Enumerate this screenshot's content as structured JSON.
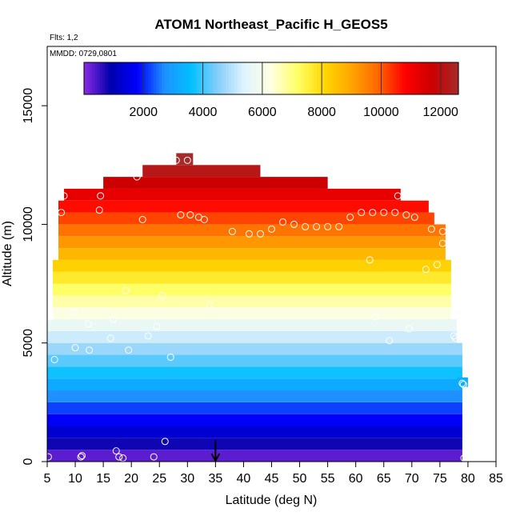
{
  "chart_data": {
    "type": "heatmap",
    "title": "ATOM1 Northeast_Pacific H_GEOS5",
    "subtitle_flights": "Flts: 1,2",
    "subtitle_dates": "MMDD: 0729,0801",
    "xlabel": "Latitude (deg N)",
    "ylabel": "Altitude (m)",
    "xlim": [
      5,
      85
    ],
    "ylim": [
      0,
      17500
    ],
    "x_ticks": [
      5,
      10,
      15,
      20,
      25,
      30,
      35,
      40,
      45,
      50,
      55,
      60,
      65,
      70,
      75,
      80,
      85
    ],
    "y_ticks": [
      0,
      5000,
      10000,
      15000
    ],
    "colorbar": {
      "min": 0,
      "max": 12600,
      "ticks": [
        2000,
        4000,
        6000,
        8000,
        10000,
        12000
      ],
      "colors": [
        "#8a2be2",
        "#0000ad",
        "#0000ff",
        "#1e90ff",
        "#00bfff",
        "#87cefa",
        "#e0f4ff",
        "#ffffe0",
        "#ffff66",
        "#ffd700",
        "#ffa500",
        "#ff6600",
        "#ff0000",
        "#cc0000",
        "#a52a2a"
      ]
    },
    "layer_thickness": 500,
    "layers": [
      {
        "alt": 0,
        "x0": 5,
        "x1": 79,
        "value": 300
      },
      {
        "alt": 500,
        "x0": 5,
        "x1": 79,
        "value": 800
      },
      {
        "alt": 1000,
        "x0": 5,
        "x1": 79,
        "value": 1300
      },
      {
        "alt": 1500,
        "x0": 5,
        "x1": 79,
        "value": 1700
      },
      {
        "alt": 2000,
        "x0": 5,
        "x1": 79,
        "value": 2200
      },
      {
        "alt": 2500,
        "x0": 5,
        "x1": 79,
        "value": 2700
      },
      {
        "alt": 3000,
        "x0": 5,
        "x1": 79,
        "value": 3200
      },
      {
        "alt": 3500,
        "x0": 5,
        "x1": 79,
        "value": 3700
      },
      {
        "alt": 4000,
        "x0": 5,
        "x1": 79,
        "value": 4200
      },
      {
        "alt": 4500,
        "x0": 5,
        "x1": 79,
        "value": 4700
      },
      {
        "alt": 5000,
        "x0": 5,
        "x1": 78,
        "value": 5200
      },
      {
        "alt": 5500,
        "x0": 5,
        "x1": 78,
        "value": 5700
      },
      {
        "alt": 6000,
        "x0": 6,
        "x1": 77,
        "value": 6200
      },
      {
        "alt": 6500,
        "x0": 6,
        "x1": 77,
        "value": 6700
      },
      {
        "alt": 7000,
        "x0": 6,
        "x1": 77,
        "value": 7200
      },
      {
        "alt": 7500,
        "x0": 6,
        "x1": 77,
        "value": 7700
      },
      {
        "alt": 8000,
        "x0": 6,
        "x1": 77,
        "value": 8200
      },
      {
        "alt": 8500,
        "x0": 7,
        "x1": 76,
        "value": 8700
      },
      {
        "alt": 9000,
        "x0": 7,
        "x1": 76,
        "value": 9200
      },
      {
        "alt": 9500,
        "x0": 7,
        "x1": 76,
        "value": 9700
      },
      {
        "alt": 10000,
        "x0": 7,
        "x1": 74,
        "value": 10200
      },
      {
        "alt": 10500,
        "x0": 7,
        "x1": 73,
        "value": 10700
      },
      {
        "alt": 11000,
        "x0": 8,
        "x1": 68,
        "value": 11200
      },
      {
        "alt": 11500,
        "x0": 15,
        "x1": 55,
        "value": 11700
      },
      {
        "alt": 12000,
        "x0": 22,
        "x1": 43,
        "value": 12200
      },
      {
        "alt": 12500,
        "x0": 28,
        "x1": 31,
        "value": 12600
      }
    ],
    "isolated_cells": [
      {
        "x0": 78,
        "x1": 80,
        "alt": 3150,
        "h": 400,
        "value": 3300
      }
    ],
    "observations": [
      [
        5.2,
        200
      ],
      [
        11,
        200
      ],
      [
        11.2,
        250
      ],
      [
        17.3,
        450
      ],
      [
        17.8,
        200
      ],
      [
        18.5,
        150
      ],
      [
        24,
        200
      ],
      [
        26,
        850
      ],
      [
        6.3,
        4300
      ],
      [
        10,
        4800
      ],
      [
        12.5,
        4700
      ],
      [
        19.5,
        4700
      ],
      [
        23,
        5300
      ],
      [
        24.5,
        5700
      ],
      [
        27,
        4400
      ],
      [
        5.5,
        6100
      ],
      [
        9.8,
        6300
      ],
      [
        12.3,
        5800
      ],
      [
        16.3,
        5200
      ],
      [
        16.8,
        6000
      ],
      [
        19,
        7200
      ],
      [
        25.5,
        7000
      ],
      [
        34,
        6600
      ],
      [
        63.5,
        6100
      ],
      [
        66,
        5100
      ],
      [
        69.5,
        5600
      ],
      [
        77.5,
        5300
      ],
      [
        77.8,
        5200
      ],
      [
        62.5,
        8500
      ],
      [
        72.5,
        8100
      ],
      [
        74.5,
        8300
      ],
      [
        75.5,
        9200
      ],
      [
        7.5,
        10500
      ],
      [
        8,
        11200
      ],
      [
        14.5,
        11200
      ],
      [
        14.3,
        10600
      ],
      [
        21,
        12000
      ],
      [
        22,
        10200
      ],
      [
        28,
        12700
      ],
      [
        30,
        12700
      ],
      [
        28.8,
        10400
      ],
      [
        30.5,
        10400
      ],
      [
        32,
        10300
      ],
      [
        33,
        10200
      ],
      [
        38,
        9700
      ],
      [
        41,
        9600
      ],
      [
        43,
        9600
      ],
      [
        45,
        9800
      ],
      [
        47,
        10100
      ],
      [
        49,
        10000
      ],
      [
        51,
        9900
      ],
      [
        53,
        9900
      ],
      [
        55,
        9900
      ],
      [
        57,
        9900
      ],
      [
        59,
        10300
      ],
      [
        61,
        10500
      ],
      [
        63,
        10500
      ],
      [
        65,
        10500
      ],
      [
        67,
        10500
      ],
      [
        67.5,
        11200
      ],
      [
        69,
        10400
      ],
      [
        70.5,
        10300
      ],
      [
        73.5,
        9800
      ],
      [
        75.5,
        9700
      ],
      [
        79,
        3300
      ],
      [
        79.2,
        3250
      ],
      [
        79.3,
        150
      ]
    ],
    "marker": {
      "x": 35,
      "y_from": 900,
      "y_to": 0
    }
  }
}
